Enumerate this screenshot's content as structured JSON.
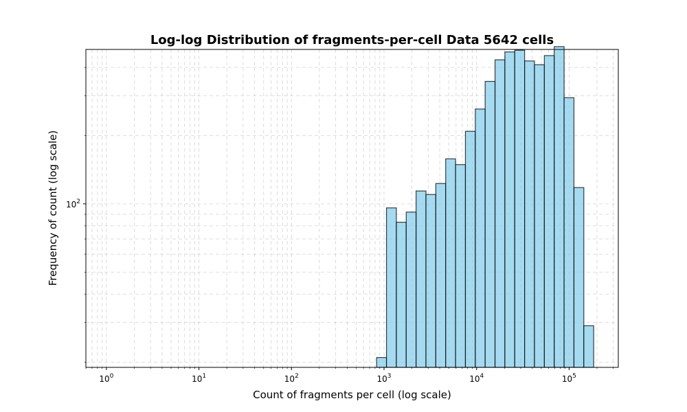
{
  "chart_data": {
    "type": "bar",
    "title": "Log-log Distribution of fragments-per-cell Data 5642 cells",
    "xlabel": "Count of fragments per cell (log scale)",
    "ylabel": "Frequency of count (log scale)",
    "x_scale": "log",
    "y_scale": "log",
    "grid": true,
    "xlim": [
      0.6,
      340000
    ],
    "ylim": [
      19,
      480
    ],
    "x_ticks": [
      {
        "value": 1,
        "base": "10",
        "exp": "0"
      },
      {
        "value": 10,
        "base": "10",
        "exp": "1"
      },
      {
        "value": 100,
        "base": "10",
        "exp": "2"
      },
      {
        "value": 1000,
        "base": "10",
        "exp": "3"
      },
      {
        "value": 10000,
        "base": "10",
        "exp": "4"
      },
      {
        "value": 100000,
        "base": "10",
        "exp": "5"
      }
    ],
    "y_ticks": [
      {
        "value": 100,
        "base": "10",
        "exp": "2"
      }
    ],
    "bin_edges": [
      832,
      1063,
      1359,
      1737,
      2220,
      2838,
      3628,
      4637,
      5927,
      7576,
      9685,
      12379,
      15824,
      20227,
      25855,
      33049,
      42245,
      54000,
      69025,
      88231,
      112782,
      144163,
      184277
    ],
    "values": [
      21,
      96,
      83,
      92,
      114,
      110,
      123,
      158,
      149,
      209,
      262,
      347,
      432,
      468,
      476,
      427,
      411,
      451,
      494,
      294,
      118,
      29
    ],
    "colors": {
      "bar_fill": "#87ceeb",
      "bar_edge": "#000000",
      "grid": "#b0b0b0"
    }
  }
}
